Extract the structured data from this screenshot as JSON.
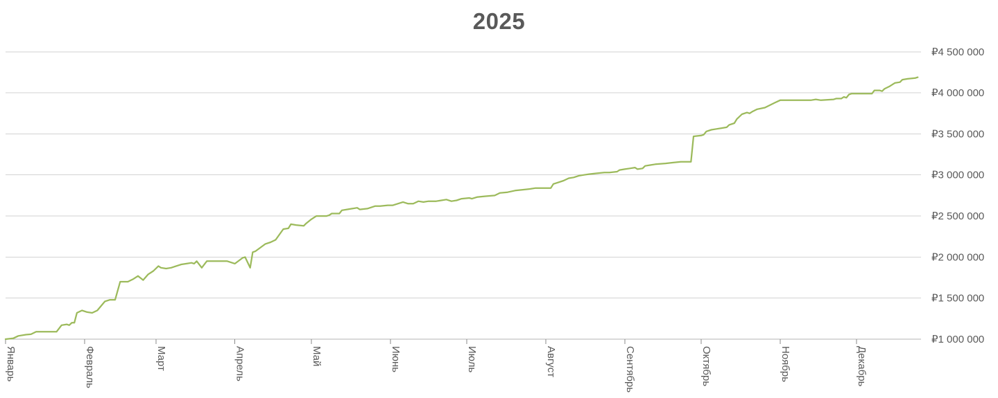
{
  "chart_data": {
    "type": "line",
    "title": "2025",
    "grid": true,
    "legend": false,
    "x_axis": {
      "unit": "day-of-year",
      "tick_labels": [
        "Январь",
        "Февраль",
        "Март",
        "Апрель",
        "Май",
        "Июнь",
        "Июль",
        "Август",
        "Сентябрь",
        "Октябрь",
        "Ноябрь",
        "Декабрь"
      ],
      "tick_days": [
        1,
        32,
        60,
        91,
        121,
        152,
        182,
        213,
        244,
        274,
        305,
        335
      ],
      "label_rotation_deg": 90
    },
    "y_axis": {
      "side": "right",
      "min": 1000000,
      "max": 4500000,
      "step": 500000,
      "currency": "RUB",
      "tick_labels": [
        "₽1 000 000",
        "₽1 500 000",
        "₽2 000 000",
        "₽2 500 000",
        "₽3 000 000",
        "₽3 500 000",
        "₽4 000 000",
        "₽4 500 000"
      ]
    },
    "series": [
      {
        "name": "2025",
        "color": "#9cba5b",
        "points": [
          [
            1,
            1000000
          ],
          [
            4,
            1010000
          ],
          [
            6,
            1040000
          ],
          [
            9,
            1055000
          ],
          [
            11,
            1060000
          ],
          [
            13,
            1090000
          ],
          [
            21,
            1090000
          ],
          [
            23,
            1170000
          ],
          [
            25,
            1180000
          ],
          [
            26,
            1170000
          ],
          [
            27,
            1200000
          ],
          [
            28,
            1200000
          ],
          [
            29,
            1320000
          ],
          [
            31,
            1350000
          ],
          [
            33,
            1330000
          ],
          [
            35,
            1320000
          ],
          [
            37,
            1350000
          ],
          [
            40,
            1460000
          ],
          [
            42,
            1480000
          ],
          [
            44,
            1480000
          ],
          [
            46,
            1700000
          ],
          [
            49,
            1700000
          ],
          [
            51,
            1730000
          ],
          [
            53,
            1770000
          ],
          [
            55,
            1720000
          ],
          [
            57,
            1790000
          ],
          [
            59,
            1830000
          ],
          [
            61,
            1890000
          ],
          [
            62,
            1870000
          ],
          [
            64,
            1860000
          ],
          [
            66,
            1870000
          ],
          [
            69,
            1900000
          ],
          [
            70,
            1910000
          ],
          [
            72,
            1920000
          ],
          [
            74,
            1930000
          ],
          [
            75,
            1920000
          ],
          [
            76,
            1950000
          ],
          [
            78,
            1870000
          ],
          [
            80,
            1950000
          ],
          [
            88,
            1950000
          ],
          [
            91,
            1920000
          ],
          [
            94,
            1990000
          ],
          [
            95,
            2000000
          ],
          [
            97,
            1870000
          ],
          [
            98,
            2060000
          ],
          [
            99,
            2070000
          ],
          [
            103,
            2160000
          ],
          [
            105,
            2180000
          ],
          [
            107,
            2210000
          ],
          [
            110,
            2340000
          ],
          [
            112,
            2350000
          ],
          [
            113,
            2400000
          ],
          [
            115,
            2390000
          ],
          [
            118,
            2380000
          ],
          [
            119,
            2410000
          ],
          [
            121,
            2460000
          ],
          [
            123,
            2500000
          ],
          [
            127,
            2500000
          ],
          [
            128,
            2510000
          ],
          [
            129,
            2530000
          ],
          [
            132,
            2530000
          ],
          [
            133,
            2570000
          ],
          [
            135,
            2580000
          ],
          [
            137,
            2590000
          ],
          [
            139,
            2600000
          ],
          [
            140,
            2580000
          ],
          [
            143,
            2590000
          ],
          [
            146,
            2620000
          ],
          [
            148,
            2620000
          ],
          [
            151,
            2630000
          ],
          [
            153,
            2630000
          ],
          [
            156,
            2660000
          ],
          [
            157,
            2670000
          ],
          [
            159,
            2650000
          ],
          [
            161,
            2650000
          ],
          [
            163,
            2680000
          ],
          [
            165,
            2670000
          ],
          [
            167,
            2680000
          ],
          [
            170,
            2680000
          ],
          [
            172,
            2690000
          ],
          [
            174,
            2700000
          ],
          [
            176,
            2680000
          ],
          [
            178,
            2690000
          ],
          [
            180,
            2710000
          ],
          [
            183,
            2720000
          ],
          [
            184,
            2710000
          ],
          [
            186,
            2730000
          ],
          [
            189,
            2740000
          ],
          [
            193,
            2750000
          ],
          [
            195,
            2780000
          ],
          [
            198,
            2790000
          ],
          [
            201,
            2810000
          ],
          [
            204,
            2820000
          ],
          [
            207,
            2830000
          ],
          [
            209,
            2840000
          ],
          [
            215,
            2840000
          ],
          [
            216,
            2890000
          ],
          [
            218,
            2910000
          ],
          [
            220,
            2930000
          ],
          [
            222,
            2960000
          ],
          [
            224,
            2970000
          ],
          [
            226,
            2990000
          ],
          [
            228,
            3000000
          ],
          [
            230,
            3010000
          ],
          [
            233,
            3020000
          ],
          [
            236,
            3030000
          ],
          [
            238,
            3030000
          ],
          [
            241,
            3040000
          ],
          [
            242,
            3060000
          ],
          [
            244,
            3070000
          ],
          [
            246,
            3080000
          ],
          [
            248,
            3090000
          ],
          [
            249,
            3070000
          ],
          [
            251,
            3080000
          ],
          [
            252,
            3110000
          ],
          [
            254,
            3120000
          ],
          [
            256,
            3130000
          ],
          [
            260,
            3140000
          ],
          [
            263,
            3150000
          ],
          [
            266,
            3160000
          ],
          [
            270,
            3160000
          ],
          [
            271,
            3470000
          ],
          [
            274,
            3480000
          ],
          [
            275,
            3490000
          ],
          [
            276,
            3530000
          ],
          [
            278,
            3550000
          ],
          [
            280,
            3560000
          ],
          [
            282,
            3570000
          ],
          [
            284,
            3580000
          ],
          [
            285,
            3610000
          ],
          [
            287,
            3630000
          ],
          [
            288,
            3680000
          ],
          [
            290,
            3740000
          ],
          [
            292,
            3760000
          ],
          [
            293,
            3750000
          ],
          [
            294,
            3770000
          ],
          [
            296,
            3800000
          ],
          [
            299,
            3820000
          ],
          [
            301,
            3850000
          ],
          [
            303,
            3880000
          ],
          [
            305,
            3910000
          ],
          [
            317,
            3910000
          ],
          [
            319,
            3920000
          ],
          [
            321,
            3910000
          ],
          [
            326,
            3920000
          ],
          [
            327,
            3930000
          ],
          [
            329,
            3930000
          ],
          [
            330,
            3950000
          ],
          [
            331,
            3940000
          ],
          [
            332,
            3980000
          ],
          [
            333,
            3990000
          ],
          [
            341,
            3990000
          ],
          [
            342,
            4030000
          ],
          [
            344,
            4030000
          ],
          [
            345,
            4020000
          ],
          [
            346,
            4050000
          ],
          [
            348,
            4080000
          ],
          [
            350,
            4120000
          ],
          [
            352,
            4130000
          ],
          [
            353,
            4160000
          ],
          [
            355,
            4170000
          ],
          [
            358,
            4180000
          ],
          [
            359,
            4190000
          ]
        ]
      }
    ]
  }
}
